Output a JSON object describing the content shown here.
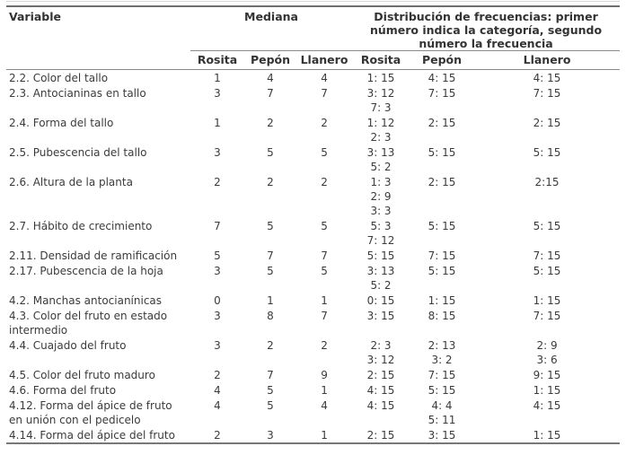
{
  "table": {
    "columns": {
      "variable": "Variable"
    },
    "groups": [
      {
        "label": "Mediana",
        "subcolumns": [
          "Rosita",
          "Pepón",
          "Llanero"
        ]
      },
      {
        "label": "Distribución de frecuencias: primer\nnúmero indica la categoría, segundo\nnúmero la frecuencia",
        "subcolumns": [
          "Rosita",
          "Pepón",
          "Llanero"
        ]
      }
    ],
    "rows": [
      {
        "variable": "2.2. Color del tallo",
        "mediana": [
          "1",
          "4",
          "4"
        ],
        "dist": [
          "1: 15",
          "4: 15",
          "4: 15"
        ]
      },
      {
        "variable": "2.3. Antocianinas en tallo",
        "mediana": [
          "3",
          "7",
          "7"
        ],
        "dist": [
          "3: 12\n7: 3",
          "7: 15",
          "7: 15"
        ]
      },
      {
        "variable": "2.4. Forma del tallo",
        "mediana": [
          "1",
          "2",
          "2"
        ],
        "dist": [
          "1: 12\n2: 3",
          "2: 15",
          "2: 15"
        ]
      },
      {
        "variable": "2.5. Pubescencia del tallo",
        "mediana": [
          "3",
          "5",
          "5"
        ],
        "dist": [
          "3: 13\n5: 2",
          "5: 15",
          "5: 15"
        ]
      },
      {
        "variable": "2.6. Altura de la planta",
        "mediana": [
          "2",
          "2",
          "2"
        ],
        "dist": [
          "1: 3\n2: 9\n3: 3",
          "2: 15",
          "2:15"
        ]
      },
      {
        "variable": "2.7. Hábito de crecimiento",
        "mediana": [
          "7",
          "5",
          "5"
        ],
        "dist": [
          "5: 3\n7: 12",
          "5: 15",
          "5: 15"
        ]
      },
      {
        "variable": "2.11. Densidad de ramificación",
        "mediana": [
          "5",
          "7",
          "7"
        ],
        "dist": [
          "5: 15",
          "7: 15",
          "7: 15"
        ]
      },
      {
        "variable": "2.17. Pubescencia de la hoja",
        "mediana": [
          "3",
          "5",
          "5"
        ],
        "dist": [
          "3: 13\n5: 2",
          "5: 15",
          "5: 15"
        ]
      },
      {
        "variable": "4.2. Manchas antocianínicas",
        "mediana": [
          "0",
          "1",
          "1"
        ],
        "dist": [
          "0: 15",
          "1: 15",
          "1: 15"
        ]
      },
      {
        "variable": "4.3. Color del fruto en estado\nintermedio",
        "mediana": [
          "3",
          "8",
          "7"
        ],
        "dist": [
          "3: 15",
          "8: 15",
          "7: 15"
        ]
      },
      {
        "variable": "4.4. Cuajado del fruto",
        "mediana": [
          "3",
          "2",
          "2"
        ],
        "dist": [
          "2: 3\n3: 12",
          "2: 13\n3: 2",
          "2: 9\n3: 6"
        ]
      },
      {
        "variable": "4.5. Color del fruto maduro",
        "mediana": [
          "2",
          "7",
          "9"
        ],
        "dist": [
          "2: 15",
          "7: 15",
          "9: 15"
        ]
      },
      {
        "variable": "4.6. Forma del fruto",
        "mediana": [
          "4",
          "5",
          "1"
        ],
        "dist": [
          "4: 15",
          "5: 15",
          "1: 15"
        ]
      },
      {
        "variable": "4.12. Forma del ápice de fruto\nen unión con el pedicelo",
        "mediana": [
          "4",
          "5",
          "4"
        ],
        "dist": [
          "4: 15",
          "4: 4\n5: 11",
          "4: 15"
        ]
      },
      {
        "variable": "4.14. Forma del ápice del fruto",
        "mediana": [
          "2",
          "3",
          "1"
        ],
        "dist": [
          "2: 15",
          "3: 15",
          "1: 15"
        ]
      }
    ],
    "colors": {
      "text": "#3b3b3b",
      "header_text": "#333333",
      "rule_dark": "#6e6e6e",
      "rule_light": "#8a8a8a",
      "background": "#ffffff"
    }
  }
}
